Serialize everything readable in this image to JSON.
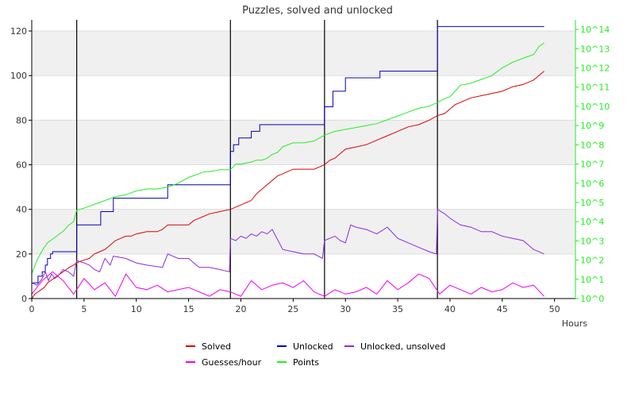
{
  "chart_data": {
    "type": "line",
    "title": "Puzzles, solved and unlocked",
    "xlabel": "Hours",
    "ylabel": "",
    "xlim": [
      0,
      52
    ],
    "ylim": [
      0,
      125
    ],
    "x_ticks": [
      0,
      5,
      10,
      15,
      20,
      25,
      30,
      35,
      40,
      45,
      50
    ],
    "y_ticks": [
      0,
      20,
      40,
      60,
      80,
      100,
      120
    ],
    "y2_scale": "log",
    "y2lim_exp": [
      0,
      14.5
    ],
    "y2_ticks": [
      "10^0",
      "10^1",
      "10^2",
      "10^3",
      "10^4",
      "10^5",
      "10^6",
      "10^7",
      "10^8",
      "10^9",
      "10^10",
      "10^11",
      "10^12",
      "10^13",
      "10^14"
    ],
    "grid": "alternating horizontal bands",
    "legend_position": "bottom",
    "vertical_markers": [
      4.3,
      19.0,
      28.0,
      38.8
    ],
    "colors": {
      "solved": "#dd0000",
      "unlocked": "#0000bb",
      "unlocked_unsolved": "#8a2be2",
      "guesses": "#ee00ee",
      "points": "#22ee22",
      "band": "#f0f0f0",
      "axis": "#000000",
      "y2_axis": "#22ee22"
    },
    "series": [
      {
        "name": "Solved",
        "axis": "left",
        "x": [
          0,
          0.3,
          0.6,
          0.9,
          1.2,
          1.5,
          1.8,
          2.1,
          2.4,
          2.7,
          3.0,
          3.3,
          3.6,
          4.0,
          4.3,
          4.8,
          5.5,
          6.0,
          6.5,
          7.0,
          7.5,
          8.0,
          8.5,
          9.0,
          9.5,
          10.0,
          11.0,
          12.0,
          12.5,
          13.0,
          14.0,
          15.0,
          15.5,
          16.0,
          17.0,
          18.0,
          19.0,
          19.5,
          20.0,
          21.0,
          21.5,
          22.0,
          22.5,
          23.0,
          23.5,
          24.0,
          24.5,
          25.0,
          25.5,
          26.0,
          27.0,
          28.0,
          28.5,
          29.0,
          29.5,
          30.0,
          31.0,
          32.0,
          33.0,
          34.0,
          35.0,
          35.5,
          36.0,
          37.0,
          38.0,
          38.8,
          39.5,
          40.0,
          40.5,
          41.0,
          42.0,
          43.0,
          44.0,
          45.0,
          46.0,
          47.0,
          48.0,
          49.0
        ],
        "y": [
          0,
          2,
          3,
          4,
          5,
          7,
          8,
          9,
          10,
          11,
          12,
          13,
          14,
          15,
          16,
          17,
          18,
          20,
          21,
          22,
          24,
          26,
          27,
          28,
          28,
          29,
          30,
          30,
          31,
          33,
          33,
          33,
          35,
          36,
          38,
          39,
          40,
          41,
          42,
          44,
          47,
          49,
          51,
          53,
          55,
          56,
          57,
          58,
          58,
          58,
          58,
          60,
          62,
          63,
          65,
          67,
          68,
          69,
          71,
          73,
          75,
          76,
          77,
          78,
          80,
          82,
          83,
          85,
          87,
          88,
          90,
          91,
          92,
          93,
          95,
          96,
          98,
          102
        ]
      },
      {
        "name": "Unlocked",
        "axis": "left",
        "x": [
          0,
          0.6,
          1.0,
          1.3,
          1.5,
          1.8,
          2.0,
          4.3,
          6.6,
          7.8,
          13.0,
          19.0,
          19.3,
          19.8,
          21.0,
          21.8,
          22.7,
          28.0,
          28.8,
          30.0,
          33.3,
          38.8,
          49.0
        ],
        "y": [
          7,
          10,
          12,
          15,
          18,
          20,
          21,
          33,
          39,
          45,
          51,
          66,
          69,
          72,
          75,
          78,
          78,
          86,
          93,
          99,
          102,
          122,
          122
        ]
      },
      {
        "name": "Unlocked, unsolved",
        "axis": "left",
        "x": [
          0,
          0.5,
          1.0,
          1.3,
          1.6,
          1.9,
          2.2,
          2.5,
          3.0,
          3.5,
          4.0,
          4.3,
          5.0,
          5.5,
          6.0,
          6.5,
          7.0,
          7.5,
          7.8,
          9.0,
          10.0,
          11.0,
          12.5,
          13.0,
          14.0,
          15.0,
          16.0,
          17.0,
          18.0,
          18.9,
          19.0,
          19.5,
          20.0,
          20.5,
          21.0,
          21.5,
          22.0,
          22.5,
          23.0,
          24.0,
          25.0,
          26.0,
          27.0,
          27.8,
          28.0,
          28.5,
          29.0,
          29.5,
          30.0,
          30.5,
          31.0,
          32.0,
          33.0,
          34.0,
          35.0,
          36.0,
          37.0,
          38.0,
          38.7,
          38.8,
          39.5,
          40.0,
          41.0,
          42.0,
          43.0,
          44.0,
          45.0,
          46.0,
          47.0,
          48.0,
          49.0
        ],
        "y": [
          7,
          6,
          9,
          12,
          8,
          11,
          9,
          10,
          13,
          12,
          10,
          17,
          16,
          15,
          13,
          12,
          18,
          15,
          19,
          18,
          16,
          15,
          14,
          20,
          18,
          18,
          14,
          14,
          13,
          12,
          27,
          26,
          28,
          27,
          29,
          28,
          30,
          29,
          31,
          22,
          21,
          20,
          20,
          18,
          26,
          27,
          28,
          26,
          25,
          33,
          32,
          31,
          29,
          32,
          27,
          25,
          23,
          21,
          20,
          40,
          38,
          36,
          33,
          32,
          30,
          30,
          28,
          27,
          26,
          22,
          20
        ]
      },
      {
        "name": "Guesses/hour",
        "axis": "left",
        "x": [
          0,
          1,
          2,
          3,
          4,
          5,
          6,
          7,
          8,
          9,
          10,
          11,
          12,
          13,
          14,
          15,
          16,
          17,
          18,
          19,
          20,
          21,
          22,
          23,
          24,
          25,
          26,
          27,
          28,
          29,
          30,
          31,
          32,
          33,
          34,
          35,
          36,
          37,
          38,
          39,
          40,
          41,
          42,
          43,
          44,
          45,
          46,
          47,
          48,
          49
        ],
        "y": [
          2,
          8,
          12,
          8,
          2,
          9,
          4,
          7,
          1,
          11,
          5,
          4,
          6,
          3,
          4,
          5,
          3,
          1,
          4,
          3,
          1,
          8,
          4,
          6,
          7,
          5,
          8,
          3,
          1,
          4,
          2,
          3,
          5,
          2,
          8,
          4,
          7,
          11,
          9,
          2,
          6,
          4,
          2,
          5,
          3,
          4,
          7,
          5,
          6,
          1
        ]
      },
      {
        "name": "Points",
        "axis": "right_log_exponent",
        "x": [
          0,
          0.5,
          1.0,
          1.5,
          2.0,
          2.5,
          3.0,
          3.5,
          4.0,
          4.3,
          5.0,
          6.0,
          7.0,
          8.0,
          9.0,
          10.0,
          11.0,
          12.0,
          13.0,
          14.0,
          15.0,
          16.0,
          16.5,
          17.0,
          18.0,
          19.0,
          19.5,
          20.0,
          21.0,
          21.5,
          22.0,
          22.5,
          23.0,
          23.5,
          24.0,
          25.0,
          26.0,
          27.0,
          28.0,
          29.0,
          30.0,
          31.0,
          32.0,
          33.0,
          34.0,
          35.0,
          36.0,
          37.0,
          38.0,
          38.8,
          39.5,
          40.0,
          40.5,
          41.0,
          42.0,
          43.0,
          44.0,
          45.0,
          46.0,
          47.0,
          48.0,
          48.5,
          49.0
        ],
        "y": [
          1.3,
          2.0,
          2.5,
          2.9,
          3.1,
          3.3,
          3.5,
          3.8,
          4.0,
          4.6,
          4.7,
          4.9,
          5.1,
          5.3,
          5.4,
          5.6,
          5.7,
          5.7,
          5.8,
          6.0,
          6.3,
          6.5,
          6.6,
          6.6,
          6.7,
          6.7,
          7.0,
          7.0,
          7.1,
          7.2,
          7.2,
          7.3,
          7.5,
          7.6,
          7.9,
          8.1,
          8.1,
          8.2,
          8.5,
          8.7,
          8.8,
          8.9,
          9.0,
          9.1,
          9.3,
          9.5,
          9.7,
          9.9,
          10.0,
          10.2,
          10.4,
          10.5,
          10.8,
          11.1,
          11.2,
          11.4,
          11.6,
          12.0,
          12.3,
          12.5,
          12.7,
          13.1,
          13.3
        ]
      }
    ]
  }
}
